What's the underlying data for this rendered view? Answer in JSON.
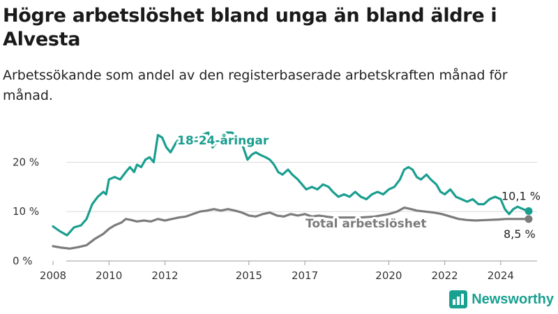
{
  "title": "Högre arbetslöshet bland unga än bland äldre i Alvesta",
  "subtitle": "Arbetssökande som andel av den registerbaserade arbetskraften månad för månad.",
  "logo": {
    "text": "Newsworthy",
    "icon": "newsworthy-bar-chart-icon"
  },
  "chart_data": {
    "type": "line",
    "title": "Högre arbetslöshet bland unga än bland äldre i Alvesta",
    "subtitle": "Arbetssökande som andel av den registerbaserade arbetskraften månad för månad.",
    "x_ticks": [
      "2008",
      "2010",
      "2012",
      "2015",
      "2017",
      "2020",
      "2022",
      "2024"
    ],
    "x_range": [
      2007.9,
      2025.3
    ],
    "y_ticks": [
      "0 %",
      "10 %",
      "20 %"
    ],
    "ylim": [
      0,
      26
    ],
    "grid": true,
    "legend": "inline labels",
    "series": [
      {
        "name": "18-24-åringar",
        "color": "#1a9e8f",
        "end_label": "10,1 %",
        "points": [
          [
            2008.0,
            7.0
          ],
          [
            2008.25,
            6.0
          ],
          [
            2008.5,
            5.2
          ],
          [
            2008.75,
            6.8
          ],
          [
            2009.0,
            7.2
          ],
          [
            2009.2,
            8.5
          ],
          [
            2009.4,
            11.5
          ],
          [
            2009.6,
            13.0
          ],
          [
            2009.8,
            14.0
          ],
          [
            2009.9,
            13.5
          ],
          [
            2010.0,
            16.5
          ],
          [
            2010.2,
            17.0
          ],
          [
            2010.4,
            16.5
          ],
          [
            2010.6,
            18.0
          ],
          [
            2010.75,
            19.0
          ],
          [
            2010.9,
            18.0
          ],
          [
            2011.0,
            19.5
          ],
          [
            2011.15,
            19.0
          ],
          [
            2011.3,
            20.5
          ],
          [
            2011.45,
            21.0
          ],
          [
            2011.6,
            20.0
          ],
          [
            2011.75,
            25.5
          ],
          [
            2011.9,
            25.0
          ],
          [
            2012.05,
            23.0
          ],
          [
            2012.2,
            22.0
          ],
          [
            2012.4,
            24.0
          ],
          [
            2012.55,
            25.0
          ],
          [
            2012.7,
            24.5
          ],
          [
            2013.0,
            24.5
          ],
          [
            2013.3,
            25.5
          ],
          [
            2013.55,
            26.0
          ],
          [
            2013.7,
            23.0
          ],
          [
            2013.85,
            24.0
          ],
          [
            2014.0,
            25.0
          ],
          [
            2014.2,
            26.0
          ],
          [
            2014.4,
            26.0
          ],
          [
            2014.6,
            25.0
          ],
          [
            2014.8,
            23.0
          ],
          [
            2014.95,
            20.5
          ],
          [
            2015.1,
            21.5
          ],
          [
            2015.25,
            22.0
          ],
          [
            2015.4,
            21.5
          ],
          [
            2015.6,
            21.0
          ],
          [
            2015.75,
            20.5
          ],
          [
            2015.9,
            19.5
          ],
          [
            2016.05,
            18.0
          ],
          [
            2016.2,
            17.5
          ],
          [
            2016.4,
            18.5
          ],
          [
            2016.55,
            17.5
          ],
          [
            2016.75,
            16.5
          ],
          [
            2016.9,
            15.5
          ],
          [
            2017.05,
            14.5
          ],
          [
            2017.25,
            15.0
          ],
          [
            2017.45,
            14.5
          ],
          [
            2017.65,
            15.5
          ],
          [
            2017.85,
            15.0
          ],
          [
            2018.0,
            14.0
          ],
          [
            2018.2,
            13.0
          ],
          [
            2018.4,
            13.5
          ],
          [
            2018.6,
            13.0
          ],
          [
            2018.8,
            14.0
          ],
          [
            2019.0,
            13.0
          ],
          [
            2019.2,
            12.5
          ],
          [
            2019.4,
            13.5
          ],
          [
            2019.6,
            14.0
          ],
          [
            2019.8,
            13.5
          ],
          [
            2020.0,
            14.5
          ],
          [
            2020.2,
            15.0
          ],
          [
            2020.4,
            16.5
          ],
          [
            2020.55,
            18.5
          ],
          [
            2020.7,
            19.0
          ],
          [
            2020.85,
            18.5
          ],
          [
            2021.0,
            17.0
          ],
          [
            2021.15,
            16.5
          ],
          [
            2021.35,
            17.5
          ],
          [
            2021.5,
            16.5
          ],
          [
            2021.7,
            15.5
          ],
          [
            2021.85,
            14.0
          ],
          [
            2022.0,
            13.5
          ],
          [
            2022.2,
            14.5
          ],
          [
            2022.4,
            13.0
          ],
          [
            2022.6,
            12.5
          ],
          [
            2022.8,
            12.0
          ],
          [
            2023.0,
            12.5
          ],
          [
            2023.2,
            11.5
          ],
          [
            2023.4,
            11.5
          ],
          [
            2023.6,
            12.5
          ],
          [
            2023.8,
            13.0
          ],
          [
            2024.0,
            12.5
          ],
          [
            2024.15,
            10.5
          ],
          [
            2024.3,
            9.5
          ],
          [
            2024.45,
            10.5
          ],
          [
            2024.6,
            11.0
          ],
          [
            2024.8,
            10.5
          ],
          [
            2025.0,
            10.1
          ]
        ]
      },
      {
        "name": "Total arbetslöshet",
        "color": "#7b7b7b",
        "end_label": "8,5 %",
        "points": [
          [
            2008.0,
            3.0
          ],
          [
            2008.3,
            2.7
          ],
          [
            2008.6,
            2.5
          ],
          [
            2008.9,
            2.8
          ],
          [
            2009.2,
            3.2
          ],
          [
            2009.5,
            4.5
          ],
          [
            2009.8,
            5.5
          ],
          [
            2010.0,
            6.5
          ],
          [
            2010.2,
            7.2
          ],
          [
            2010.45,
            7.8
          ],
          [
            2010.6,
            8.5
          ],
          [
            2010.8,
            8.3
          ],
          [
            2011.0,
            8.0
          ],
          [
            2011.25,
            8.2
          ],
          [
            2011.5,
            8.0
          ],
          [
            2011.75,
            8.5
          ],
          [
            2012.0,
            8.2
          ],
          [
            2012.25,
            8.5
          ],
          [
            2012.5,
            8.8
          ],
          [
            2012.75,
            9.0
          ],
          [
            2013.0,
            9.5
          ],
          [
            2013.25,
            10.0
          ],
          [
            2013.5,
            10.2
          ],
          [
            2013.75,
            10.5
          ],
          [
            2014.0,
            10.2
          ],
          [
            2014.25,
            10.5
          ],
          [
            2014.5,
            10.2
          ],
          [
            2014.75,
            9.8
          ],
          [
            2015.0,
            9.2
          ],
          [
            2015.25,
            9.0
          ],
          [
            2015.5,
            9.5
          ],
          [
            2015.75,
            9.8
          ],
          [
            2016.0,
            9.2
          ],
          [
            2016.25,
            9.0
          ],
          [
            2016.5,
            9.5
          ],
          [
            2016.75,
            9.2
          ],
          [
            2017.0,
            9.5
          ],
          [
            2017.25,
            9.0
          ],
          [
            2017.5,
            9.2
          ],
          [
            2017.75,
            9.0
          ],
          [
            2018.0,
            8.8
          ],
          [
            2018.5,
            8.8
          ],
          [
            2019.0,
            8.8
          ],
          [
            2019.5,
            9.0
          ],
          [
            2020.0,
            9.5
          ],
          [
            2020.3,
            10.0
          ],
          [
            2020.55,
            10.8
          ],
          [
            2020.8,
            10.5
          ],
          [
            2021.0,
            10.2
          ],
          [
            2021.3,
            10.0
          ],
          [
            2021.6,
            9.8
          ],
          [
            2021.9,
            9.5
          ],
          [
            2022.2,
            9.0
          ],
          [
            2022.5,
            8.5
          ],
          [
            2022.8,
            8.3
          ],
          [
            2023.1,
            8.2
          ],
          [
            2023.5,
            8.3
          ],
          [
            2023.9,
            8.4
          ],
          [
            2024.2,
            8.5
          ],
          [
            2024.6,
            8.5
          ],
          [
            2025.0,
            8.5
          ]
        ]
      }
    ]
  }
}
